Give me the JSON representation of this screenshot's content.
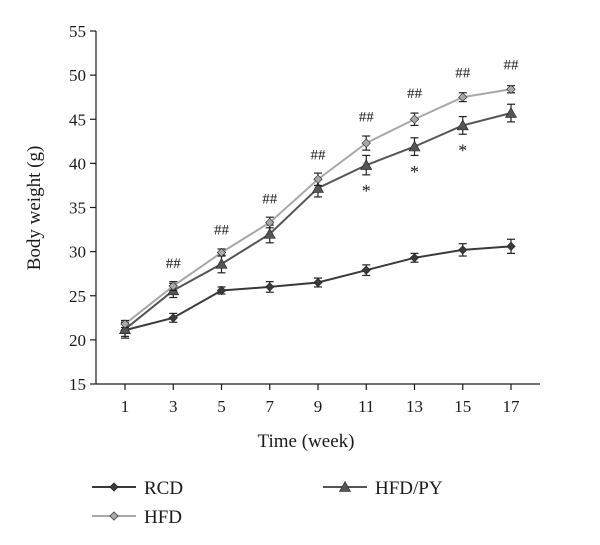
{
  "chart_data": {
    "type": "line",
    "title": "",
    "xlabel": "Time (week)",
    "ylabel": "Body weight (g)",
    "x": [
      1,
      3,
      5,
      7,
      9,
      11,
      13,
      15,
      17
    ],
    "xticks": [
      "1",
      "3",
      "5",
      "7",
      "9",
      "11",
      "13",
      "15",
      "17"
    ],
    "ylim": [
      15,
      55
    ],
    "yticks": [
      "15",
      "20",
      "25",
      "30",
      "35",
      "40",
      "45",
      "50",
      "55"
    ],
    "grid": false,
    "legend": "bottom",
    "series": [
      {
        "name": "RCD",
        "color": "#3a3a3a",
        "marker": "diamond",
        "values": [
          21.1,
          22.5,
          25.6,
          26.0,
          26.5,
          27.9,
          29.3,
          30.2,
          30.6
        ],
        "errors": [
          0.9,
          0.5,
          0.4,
          0.6,
          0.5,
          0.6,
          0.5,
          0.7,
          0.8
        ]
      },
      {
        "name": "HFD",
        "color": "#a8a8a8",
        "marker": "diamond",
        "values": [
          21.8,
          26.1,
          29.9,
          33.3,
          38.2,
          42.3,
          45.0,
          47.5,
          48.4
        ],
        "errors": [
          0.4,
          0.5,
          0.4,
          0.6,
          0.7,
          0.8,
          0.7,
          0.5,
          0.4
        ]
      },
      {
        "name": "HFD/PY",
        "color": "#555555",
        "marker": "triangle",
        "values": [
          21.2,
          25.6,
          28.6,
          32.0,
          37.2,
          39.8,
          41.9,
          44.3,
          45.7
        ],
        "errors": [
          0.8,
          0.8,
          1.0,
          1.0,
          1.0,
          1.1,
          1.0,
          1.0,
          1.0
        ]
      }
    ],
    "annotations": [
      {
        "x": 3,
        "text": "##",
        "y": 28.7
      },
      {
        "x": 5,
        "text": "##",
        "y": 32.5
      },
      {
        "x": 7,
        "text": "##",
        "y": 36.0
      },
      {
        "x": 9,
        "text": "##",
        "y": 41.0
      },
      {
        "x": 11,
        "text": "##",
        "y": 45.3
      },
      {
        "x": 13,
        "text": "##",
        "y": 48.0
      },
      {
        "x": 15,
        "text": "##",
        "y": 50.3
      },
      {
        "x": 17,
        "text": "##",
        "y": 51.2
      },
      {
        "x": 11,
        "text": "*",
        "y": 37.3
      },
      {
        "x": 13,
        "text": "*",
        "y": 39.5
      },
      {
        "x": 15,
        "text": "*",
        "y": 41.9
      }
    ]
  }
}
